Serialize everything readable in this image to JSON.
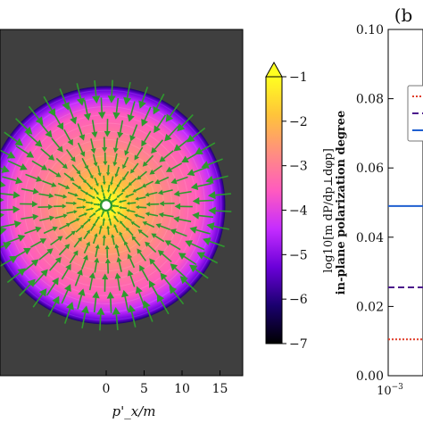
{
  "chart_data": [
    {
      "type": "heatmap",
      "description_text": "",
      "xlabel": "p'_x/m",
      "x_ticks": [
        "0",
        "5",
        "10",
        "15"
      ],
      "xlim": [
        -14,
        18
      ],
      "disc_radius": 15.7,
      "background_color": "#3f3f3f",
      "arrow_color": "#2e9a2e",
      "arrow_direction": "radially-inward",
      "arrow_rings": [
        {
          "r": 1.2,
          "n": 10
        },
        {
          "r": 2.2,
          "n": 16
        },
        {
          "r": 3.3,
          "n": 20
        },
        {
          "r": 4.6,
          "n": 24
        },
        {
          "r": 6.1,
          "n": 28
        },
        {
          "r": 8.0,
          "n": 32
        },
        {
          "r": 10.2,
          "n": 36
        },
        {
          "r": 12.8,
          "n": 40
        },
        {
          "r": 15.0,
          "n": 44
        }
      ],
      "colorbar": {
        "label": "log10[m dP/dp⊥dφp]",
        "ticks": [
          -1,
          -2,
          -3,
          -4,
          -5,
          -6,
          -7
        ],
        "range": [
          -7,
          -1
        ],
        "colors": [
          "#000000",
          "#1a006e",
          "#6a00d8",
          "#c42cff",
          "#ff5ac0",
          "#ff8e80",
          "#ffc43a",
          "#ffff20"
        ]
      }
    },
    {
      "type": "line",
      "panel_label": "(b",
      "ylabel": "in-plane polarization degree",
      "ylim": [
        0,
        0.1
      ],
      "y_ticks": [
        "0.00",
        "0.02",
        "0.04",
        "0.06",
        "0.08",
        "0.10"
      ],
      "x_tick_first": "10",
      "x_tick_first_exp": "−3",
      "x_scale": "log",
      "series": [
        {
          "color": "#1f5fd0",
          "style": "solid",
          "y": 0.049
        },
        {
          "color": "#4b1a8c",
          "style": "dashed",
          "y": 0.0255
        },
        {
          "color": "#e03c28",
          "style": "dotted",
          "y": 0.0105
        }
      ],
      "legend": {
        "placement": "top-right",
        "entries": [
          {
            "color": "#e03c28",
            "style": "dotted"
          },
          {
            "color": "#4b1a8c",
            "style": "dashed"
          },
          {
            "color": "#1f5fd0",
            "style": "solid"
          }
        ]
      }
    }
  ]
}
